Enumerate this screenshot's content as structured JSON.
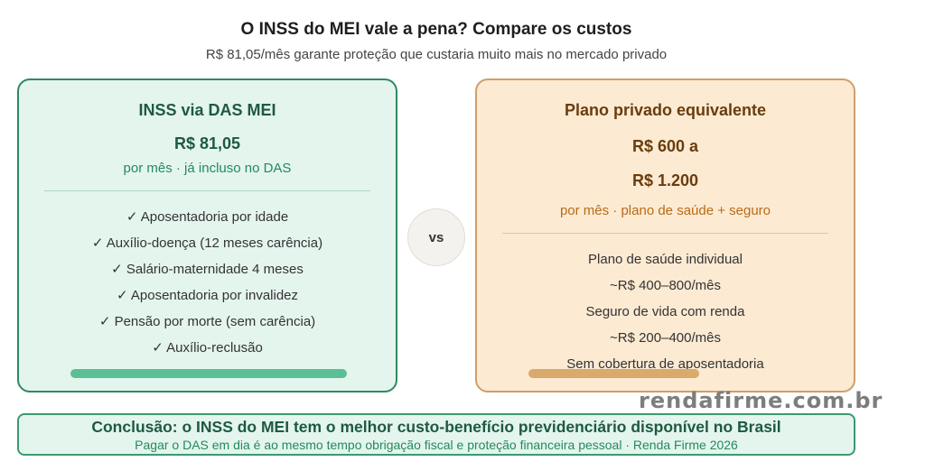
{
  "header": {
    "title": "O INSS do MEI vale a pena? Compare os custos",
    "subtitle": "R$ 81,05/mês garante proteção que custaria muito mais no mercado privado"
  },
  "left_card": {
    "heading": "INSS via DAS MEI",
    "price": "R$ 81,05",
    "note": "por mês · já incluso no DAS",
    "items": [
      "✓ Aposentadoria por idade",
      "✓ Auxílio-doença (12 meses carência)",
      "✓ Salário-maternidade 4 meses",
      "✓ Aposentadoria por invalidez",
      "✓ Pensão por morte (sem carência)",
      "✓ Auxílio-reclusão"
    ]
  },
  "vs_label": "vs",
  "right_card": {
    "heading": "Plano privado equivalente",
    "price_line1": "R$ 600 a",
    "price_line2": "R$ 1.200",
    "note": "por mês · plano de saúde + seguro",
    "items": [
      "Plano de saúde individual",
      "~R$ 400–800/mês",
      "Seguro de vida com renda",
      "~R$ 200–400/mês",
      "Sem cobertura de aposentadoria"
    ]
  },
  "watermark": "rendafirme.com.br",
  "conclusion": {
    "title": "Conclusão: o INSS do MEI tem o melhor custo-benefício previdenciário disponível no Brasil",
    "subtitle": "Pagar o DAS em dia é ao mesmo tempo obrigação fiscal e proteção financeira pessoal · Renda Firme 2026"
  },
  "colors": {
    "green_accent": "#2e8a5f",
    "green_bg": "#e4f5ee",
    "orange_accent": "#cf9f6a",
    "orange_bg": "#fcead3"
  }
}
